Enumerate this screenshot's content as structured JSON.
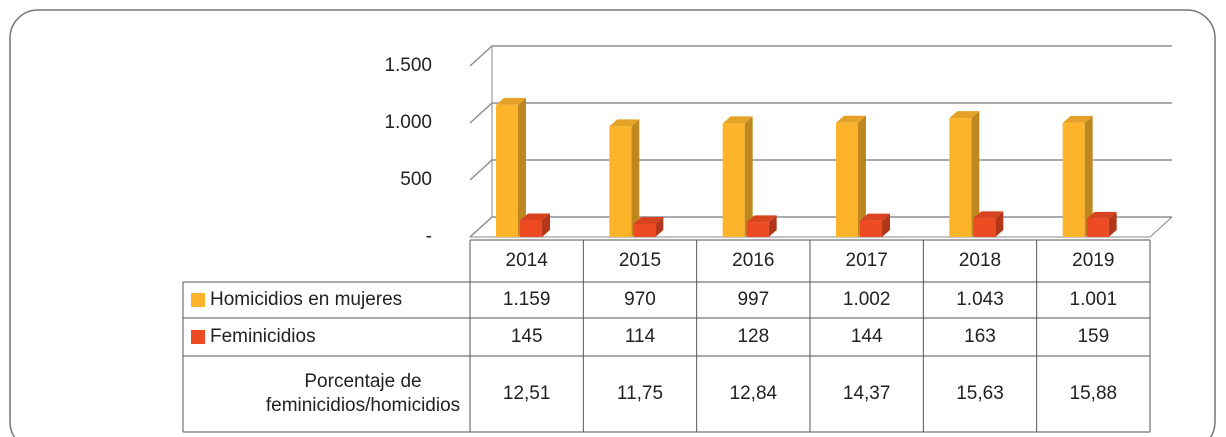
{
  "chart_data": {
    "type": "bar3d",
    "categories": [
      "2014",
      "2015",
      "2016",
      "2017",
      "2018",
      "2019"
    ],
    "series": [
      {
        "name": "Homicidios en mujeres",
        "color": "#fdb42a",
        "values": [
          1159,
          970,
          997,
          1002,
          1043,
          1001
        ],
        "value_labels": [
          "1.159",
          "970",
          "997",
          "1.002",
          "1.043",
          "1.001"
        ]
      },
      {
        "name": "Feminicidios",
        "color": "#ef4b22",
        "values": [
          145,
          114,
          128,
          144,
          163,
          159
        ],
        "value_labels": [
          "145",
          "114",
          "128",
          "144",
          "163",
          "159"
        ]
      }
    ],
    "percent_row": {
      "name": "Porcentaje de feminicidios/homicidios",
      "values": [
        12.51,
        11.75,
        12.84,
        14.37,
        15.63,
        15.88
      ],
      "value_labels": [
        "12,51",
        "11,75",
        "12,84",
        "14,37",
        "15,63",
        "15,88"
      ]
    },
    "ylim": [
      0,
      1500
    ],
    "yticks": [
      {
        "value": 0,
        "label": "-"
      },
      500,
      {
        "value": 1000,
        "label": "1.000"
      },
      {
        "value": 1500,
        "label": "1.500"
      }
    ],
    "grid": true
  }
}
